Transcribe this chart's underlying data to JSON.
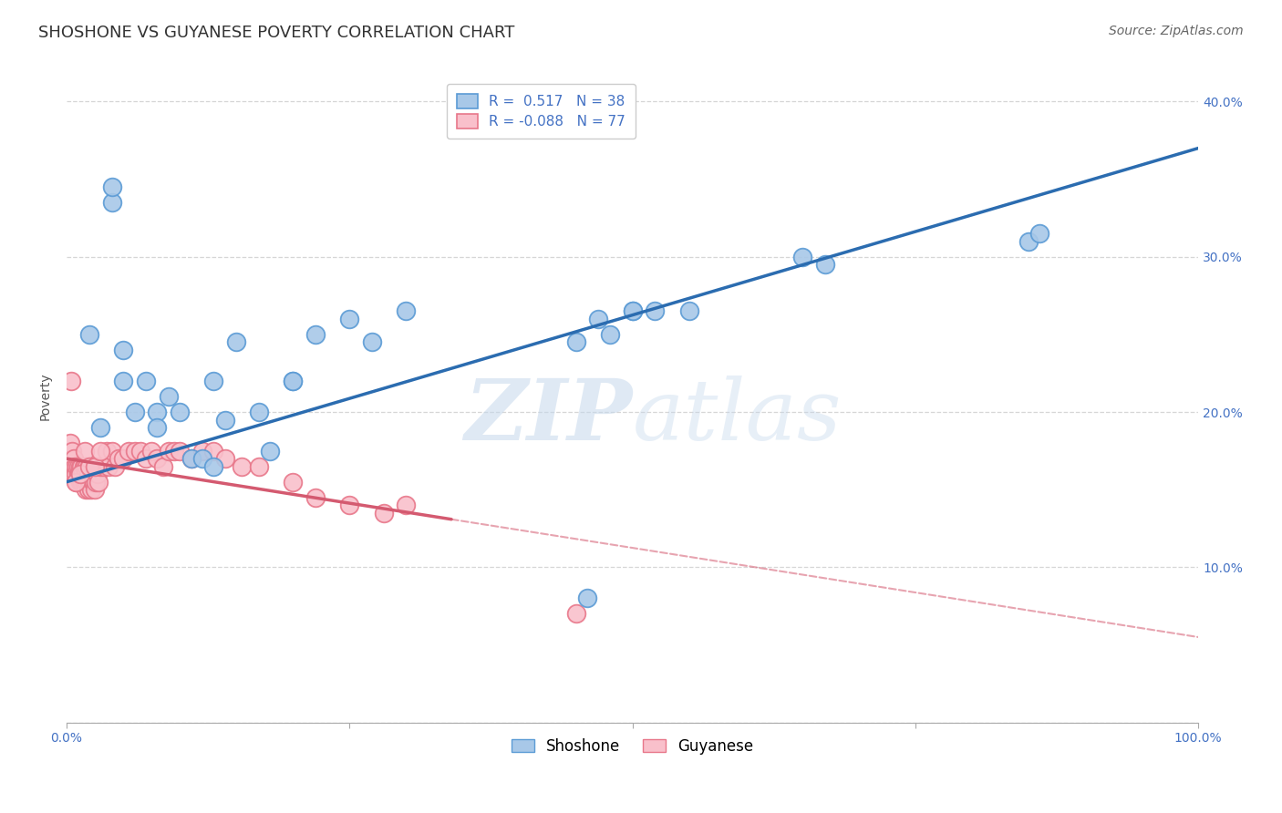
{
  "title": "SHOSHONE VS GUYANESE POVERTY CORRELATION CHART",
  "source": "Source: ZipAtlas.com",
  "ylabel": "Poverty",
  "xlim": [
    0,
    1.0
  ],
  "ylim": [
    0,
    0.42
  ],
  "ytick_positions": [
    0.0,
    0.1,
    0.2,
    0.3,
    0.4
  ],
  "ytick_labels_right": [
    "",
    "10.0%",
    "20.0%",
    "30.0%",
    "40.0%"
  ],
  "shoshone_R": 0.517,
  "shoshone_N": 38,
  "guyanese_R": -0.088,
  "guyanese_N": 77,
  "shoshone_color": "#a8c8e8",
  "shoshone_edge_color": "#5b9bd5",
  "shoshone_line_color": "#2b6cb0",
  "guyanese_color": "#f9c0cb",
  "guyanese_edge_color": "#e8778a",
  "guyanese_line_color": "#d45a70",
  "background_color": "#ffffff",
  "grid_color": "#cccccc",
  "watermark_zip": "ZIP",
  "watermark_atlas": "atlas",
  "tick_color": "#4472c4",
  "title_fontsize": 13,
  "axis_label_fontsize": 10,
  "tick_fontsize": 10,
  "legend_fontsize": 11,
  "source_fontsize": 10,
  "shoshone_x": [
    0.02,
    0.05,
    0.05,
    0.07,
    0.08,
    0.09,
    0.1,
    0.11,
    0.12,
    0.13,
    0.15,
    0.17,
    0.2,
    0.22,
    0.25,
    0.27,
    0.45,
    0.5,
    0.55,
    0.65,
    0.67,
    0.85,
    0.86,
    0.03,
    0.06,
    0.08,
    0.13,
    0.18,
    0.3,
    0.48,
    0.5,
    0.52,
    0.04,
    0.04,
    0.14,
    0.2,
    0.47,
    0.46
  ],
  "shoshone_y": [
    0.25,
    0.22,
    0.24,
    0.22,
    0.2,
    0.21,
    0.2,
    0.17,
    0.17,
    0.22,
    0.245,
    0.2,
    0.22,
    0.25,
    0.26,
    0.245,
    0.245,
    0.265,
    0.265,
    0.3,
    0.295,
    0.31,
    0.315,
    0.19,
    0.2,
    0.19,
    0.165,
    0.175,
    0.265,
    0.25,
    0.265,
    0.265,
    0.335,
    0.345,
    0.195,
    0.22,
    0.26,
    0.08
  ],
  "guyanese_x": [
    0.003,
    0.004,
    0.005,
    0.006,
    0.006,
    0.007,
    0.008,
    0.009,
    0.009,
    0.01,
    0.01,
    0.011,
    0.012,
    0.012,
    0.013,
    0.013,
    0.014,
    0.014,
    0.015,
    0.015,
    0.016,
    0.016,
    0.017,
    0.017,
    0.018,
    0.018,
    0.019,
    0.019,
    0.02,
    0.02,
    0.021,
    0.021,
    0.022,
    0.022,
    0.023,
    0.024,
    0.025,
    0.025,
    0.026,
    0.027,
    0.028,
    0.03,
    0.032,
    0.035,
    0.037,
    0.04,
    0.043,
    0.046,
    0.05,
    0.055,
    0.06,
    0.065,
    0.07,
    0.075,
    0.08,
    0.085,
    0.09,
    0.095,
    0.1,
    0.11,
    0.12,
    0.13,
    0.14,
    0.155,
    0.17,
    0.2,
    0.22,
    0.25,
    0.28,
    0.3,
    0.008,
    0.012,
    0.016,
    0.02,
    0.025,
    0.03,
    0.45
  ],
  "guyanese_y": [
    0.18,
    0.22,
    0.175,
    0.16,
    0.17,
    0.165,
    0.16,
    0.165,
    0.155,
    0.16,
    0.165,
    0.16,
    0.155,
    0.165,
    0.155,
    0.165,
    0.155,
    0.16,
    0.155,
    0.165,
    0.155,
    0.165,
    0.15,
    0.16,
    0.155,
    0.165,
    0.15,
    0.16,
    0.155,
    0.165,
    0.155,
    0.165,
    0.15,
    0.16,
    0.155,
    0.155,
    0.15,
    0.165,
    0.155,
    0.16,
    0.155,
    0.165,
    0.165,
    0.175,
    0.165,
    0.175,
    0.165,
    0.17,
    0.17,
    0.175,
    0.175,
    0.175,
    0.17,
    0.175,
    0.17,
    0.165,
    0.175,
    0.175,
    0.175,
    0.17,
    0.175,
    0.175,
    0.17,
    0.165,
    0.165,
    0.155,
    0.145,
    0.14,
    0.135,
    0.14,
    0.155,
    0.16,
    0.175,
    0.165,
    0.165,
    0.175,
    0.07
  ]
}
